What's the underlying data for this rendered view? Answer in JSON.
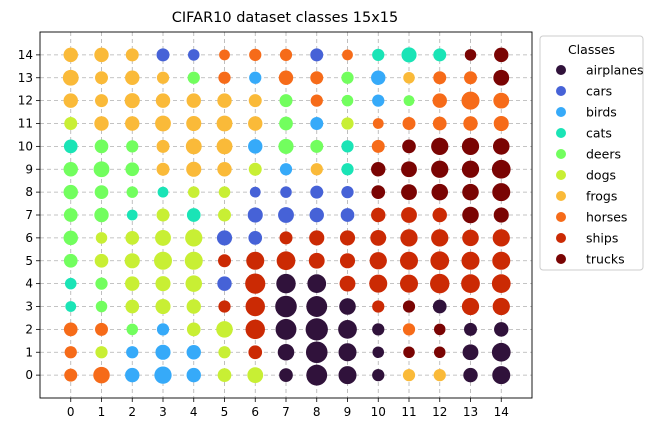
{
  "chart_data": {
    "type": "scatter",
    "title": "CIFAR10 dataset classes 15x15",
    "x_ticks": [
      "0",
      "1",
      "2",
      "3",
      "4",
      "5",
      "6",
      "7",
      "8",
      "9",
      "10",
      "11",
      "12",
      "13",
      "14"
    ],
    "y_ticks": [
      "0",
      "1",
      "2",
      "3",
      "4",
      "5",
      "6",
      "7",
      "8",
      "9",
      "10",
      "11",
      "12",
      "13",
      "14"
    ],
    "xlim": [
      -1,
      15
    ],
    "ylim": [
      -1,
      15
    ],
    "grid": true,
    "legend": {
      "title": "Classes",
      "placement": "outside-right",
      "entries": [
        "airplanes",
        "cars",
        "birds",
        "cats",
        "deers",
        "dogs",
        "frogs",
        "horses",
        "ships",
        "trucks"
      ]
    },
    "class_colors": {
      "airplanes": "#30123b",
      "cars": "#4662d7",
      "birds": "#36aaf9",
      "cats": "#1ae4b6",
      "deers": "#72fe5e",
      "dogs": "#c8ef34",
      "frogs": "#faba39",
      "horses": "#f66b19",
      "ships": "#cb2a04",
      "trucks": "#7a0403"
    },
    "size_scale_note": "values are relative marker diameters (1 = typical)",
    "grid_rows_y_desc": [
      {
        "y": 14,
        "classes": [
          "frogs",
          "frogs",
          "frogs",
          "cars",
          "cars",
          "horses",
          "horses",
          "horses",
          "cars",
          "horses",
          "cats",
          "cats",
          "cats",
          "trucks",
          "trucks"
        ],
        "sizes": [
          1.0,
          1.0,
          0.9,
          0.9,
          0.8,
          0.75,
          0.85,
          0.85,
          0.9,
          0.75,
          0.85,
          1.05,
          0.9,
          0.8,
          1.0
        ]
      },
      {
        "y": 13,
        "classes": [
          "frogs",
          "frogs",
          "frogs",
          "frogs",
          "deers",
          "horses",
          "birds",
          "horses",
          "horses",
          "deers",
          "birds",
          "frogs",
          "horses",
          "horses",
          "trucks"
        ],
        "sizes": [
          1.1,
          0.9,
          1.0,
          0.85,
          0.85,
          0.85,
          0.85,
          1.0,
          0.9,
          0.85,
          1.0,
          0.8,
          0.9,
          0.9,
          1.1
        ]
      },
      {
        "y": 12,
        "classes": [
          "frogs",
          "frogs",
          "frogs",
          "frogs",
          "frogs",
          "frogs",
          "frogs",
          "deers",
          "horses",
          "deers",
          "birds",
          "deers",
          "horses",
          "horses",
          "horses"
        ],
        "sizes": [
          1.0,
          0.9,
          1.05,
          1.0,
          1.0,
          1.0,
          0.9,
          0.9,
          0.85,
          0.8,
          0.85,
          0.75,
          1.0,
          1.25,
          1.1
        ]
      },
      {
        "y": 11,
        "classes": [
          "dogs",
          "frogs",
          "frogs",
          "frogs",
          "frogs",
          "frogs",
          "frogs",
          "deers",
          "birds",
          "dogs",
          "horses",
          "horses",
          "horses",
          "horses",
          "horses"
        ],
        "sizes": [
          0.9,
          1.0,
          1.0,
          1.1,
          1.05,
          1.1,
          1.0,
          0.95,
          0.9,
          0.85,
          0.75,
          0.9,
          0.95,
          1.0,
          1.05
        ]
      },
      {
        "y": 10,
        "classes": [
          "cats",
          "deers",
          "deers",
          "frogs",
          "frogs",
          "frogs",
          "birds",
          "deers",
          "deers",
          "cats",
          "horses",
          "trucks",
          "trucks",
          "trucks",
          "trucks"
        ],
        "sizes": [
          0.95,
          0.95,
          0.85,
          0.9,
          1.1,
          1.1,
          1.0,
          1.05,
          0.9,
          0.85,
          0.9,
          0.95,
          1.2,
          1.2,
          1.15
        ]
      },
      {
        "y": 9,
        "classes": [
          "deers",
          "deers",
          "deers",
          "frogs",
          "frogs",
          "frogs",
          "dogs",
          "birds",
          "frogs",
          "cats",
          "trucks",
          "trucks",
          "trucks",
          "trucks",
          "trucks"
        ],
        "sizes": [
          1.0,
          1.1,
          0.95,
          0.9,
          1.05,
          1.0,
          0.9,
          0.85,
          0.85,
          0.85,
          1.0,
          1.1,
          1.2,
          1.2,
          1.3
        ]
      },
      {
        "y": 8,
        "classes": [
          "deers",
          "deers",
          "deers",
          "cats",
          "dogs",
          "dogs",
          "cars",
          "cars",
          "cars",
          "cars",
          "trucks",
          "trucks",
          "trucks",
          "trucks",
          "trucks"
        ],
        "sizes": [
          1.0,
          0.95,
          0.8,
          0.75,
          0.8,
          0.8,
          0.75,
          0.8,
          0.9,
          0.85,
          0.95,
          1.1,
          1.15,
          1.15,
          1.25
        ]
      },
      {
        "y": 7,
        "classes": [
          "deers",
          "deers",
          "cats",
          "dogs",
          "cats",
          "dogs",
          "cars",
          "cars",
          "cars",
          "cars",
          "ships",
          "ships",
          "ships",
          "trucks",
          "trucks"
        ],
        "sizes": [
          0.95,
          1.0,
          0.75,
          0.9,
          0.95,
          0.9,
          1.05,
          1.1,
          1.0,
          0.95,
          1.0,
          1.1,
          1.0,
          1.15,
          1.05
        ]
      },
      {
        "y": 6,
        "classes": [
          "deers",
          "dogs",
          "dogs",
          "dogs",
          "dogs",
          "cars",
          "cars",
          "ships",
          "ships",
          "ships",
          "ships",
          "ships",
          "ships",
          "ships",
          "ships"
        ],
        "sizes": [
          1.0,
          0.8,
          0.95,
          1.1,
          1.2,
          1.05,
          0.95,
          0.9,
          1.05,
          1.05,
          1.1,
          1.2,
          1.2,
          1.15,
          1.2
        ]
      },
      {
        "y": 5,
        "classes": [
          "deers",
          "dogs",
          "dogs",
          "dogs",
          "dogs",
          "ships",
          "ships",
          "ships",
          "ships",
          "ships",
          "ships",
          "ships",
          "ships",
          "ships",
          "ships"
        ],
        "sizes": [
          0.95,
          0.95,
          1.05,
          1.25,
          1.25,
          0.9,
          1.25,
          1.3,
          1.1,
          1.05,
          1.2,
          1.25,
          1.3,
          1.25,
          1.25
        ]
      },
      {
        "y": 4,
        "classes": [
          "cats",
          "deers",
          "dogs",
          "dogs",
          "dogs",
          "cars",
          "ships",
          "airplanes",
          "airplanes",
          "ships",
          "ships",
          "ships",
          "ships",
          "ships",
          "ships"
        ],
        "sizes": [
          0.8,
          0.85,
          1.0,
          1.05,
          1.15,
          1.0,
          1.4,
          1.35,
          1.3,
          1.1,
          1.25,
          1.25,
          1.35,
          1.3,
          1.3
        ]
      },
      {
        "y": 3,
        "classes": [
          "cats",
          "deers",
          "dogs",
          "dogs",
          "dogs",
          "ships",
          "ships",
          "airplanes",
          "airplanes",
          "airplanes",
          "ships",
          "trucks",
          "airplanes",
          "ships",
          "ships"
        ],
        "sizes": [
          0.75,
          0.8,
          0.95,
          1.05,
          1.0,
          0.85,
          1.35,
          1.5,
          1.45,
          1.15,
          0.85,
          0.85,
          0.95,
          1.2,
          1.2
        ]
      },
      {
        "y": 2,
        "classes": [
          "horses",
          "horses",
          "deers",
          "birds",
          "dogs",
          "dogs",
          "ships",
          "airplanes",
          "airplanes",
          "airplanes",
          "airplanes",
          "horses",
          "trucks",
          "airplanes",
          "airplanes"
        ],
        "sizes": [
          0.95,
          0.9,
          0.8,
          0.85,
          0.95,
          1.15,
          1.35,
          1.45,
          1.55,
          1.3,
          0.85,
          0.85,
          0.8,
          0.9,
          1.0
        ]
      },
      {
        "y": 1,
        "classes": [
          "horses",
          "dogs",
          "birds",
          "birds",
          "birds",
          "dogs",
          "ships",
          "airplanes",
          "airplanes",
          "airplanes",
          "airplanes",
          "trucks",
          "trucks",
          "airplanes",
          "airplanes"
        ],
        "sizes": [
          0.85,
          0.85,
          0.85,
          1.05,
          1.0,
          0.85,
          0.95,
          1.15,
          1.5,
          1.25,
          0.8,
          0.8,
          0.8,
          1.1,
          1.3
        ]
      },
      {
        "y": 0,
        "classes": [
          "horses",
          "horses",
          "birds",
          "birds",
          "birds",
          "dogs",
          "dogs",
          "airplanes",
          "airplanes",
          "airplanes",
          "airplanes",
          "frogs",
          "frogs",
          "airplanes",
          "airplanes"
        ],
        "sizes": [
          0.9,
          1.15,
          1.0,
          1.2,
          1.0,
          0.95,
          1.1,
          0.95,
          1.45,
          1.25,
          0.85,
          0.85,
          0.85,
          1.0,
          1.25
        ]
      }
    ]
  }
}
